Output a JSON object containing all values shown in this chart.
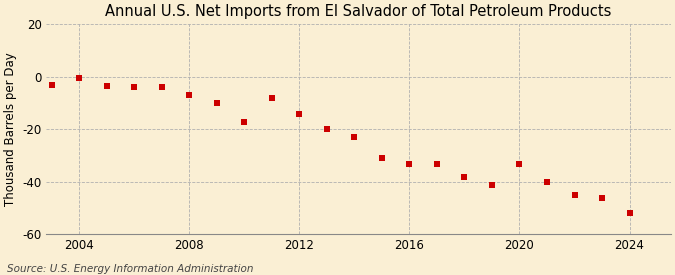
{
  "title": "Annual U.S. Net Imports from El Salvador of Total Petroleum Products",
  "ylabel": "Thousand Barrels per Day",
  "source": "Source: U.S. Energy Information Administration",
  "years": [
    2003,
    2004,
    2005,
    2006,
    2007,
    2008,
    2009,
    2010,
    2011,
    2012,
    2013,
    2014,
    2015,
    2016,
    2017,
    2018,
    2019,
    2020,
    2021,
    2022,
    2023,
    2024
  ],
  "values": [
    -3.0,
    -0.5,
    -3.5,
    -4.0,
    -4.0,
    -7.0,
    -10.0,
    -17.0,
    -8.0,
    -14.0,
    -20.0,
    -23.0,
    -31.0,
    -33.0,
    -33.0,
    -38.0,
    -41.0,
    -33.0,
    -40.0,
    -45.0,
    -46.0,
    -52.0
  ],
  "marker_color": "#cc0000",
  "marker_size": 5,
  "background_color": "#faefd4",
  "grid_color": "#b0b0b0",
  "ylim": [
    -60,
    20
  ],
  "yticks": [
    -60,
    -40,
    -20,
    0,
    20
  ],
  "xlim": [
    2002.8,
    2025.5
  ],
  "xticks": [
    2004,
    2008,
    2012,
    2016,
    2020,
    2024
  ],
  "title_fontsize": 10.5,
  "ylabel_fontsize": 8.5,
  "source_fontsize": 7.5,
  "tick_fontsize": 8.5
}
